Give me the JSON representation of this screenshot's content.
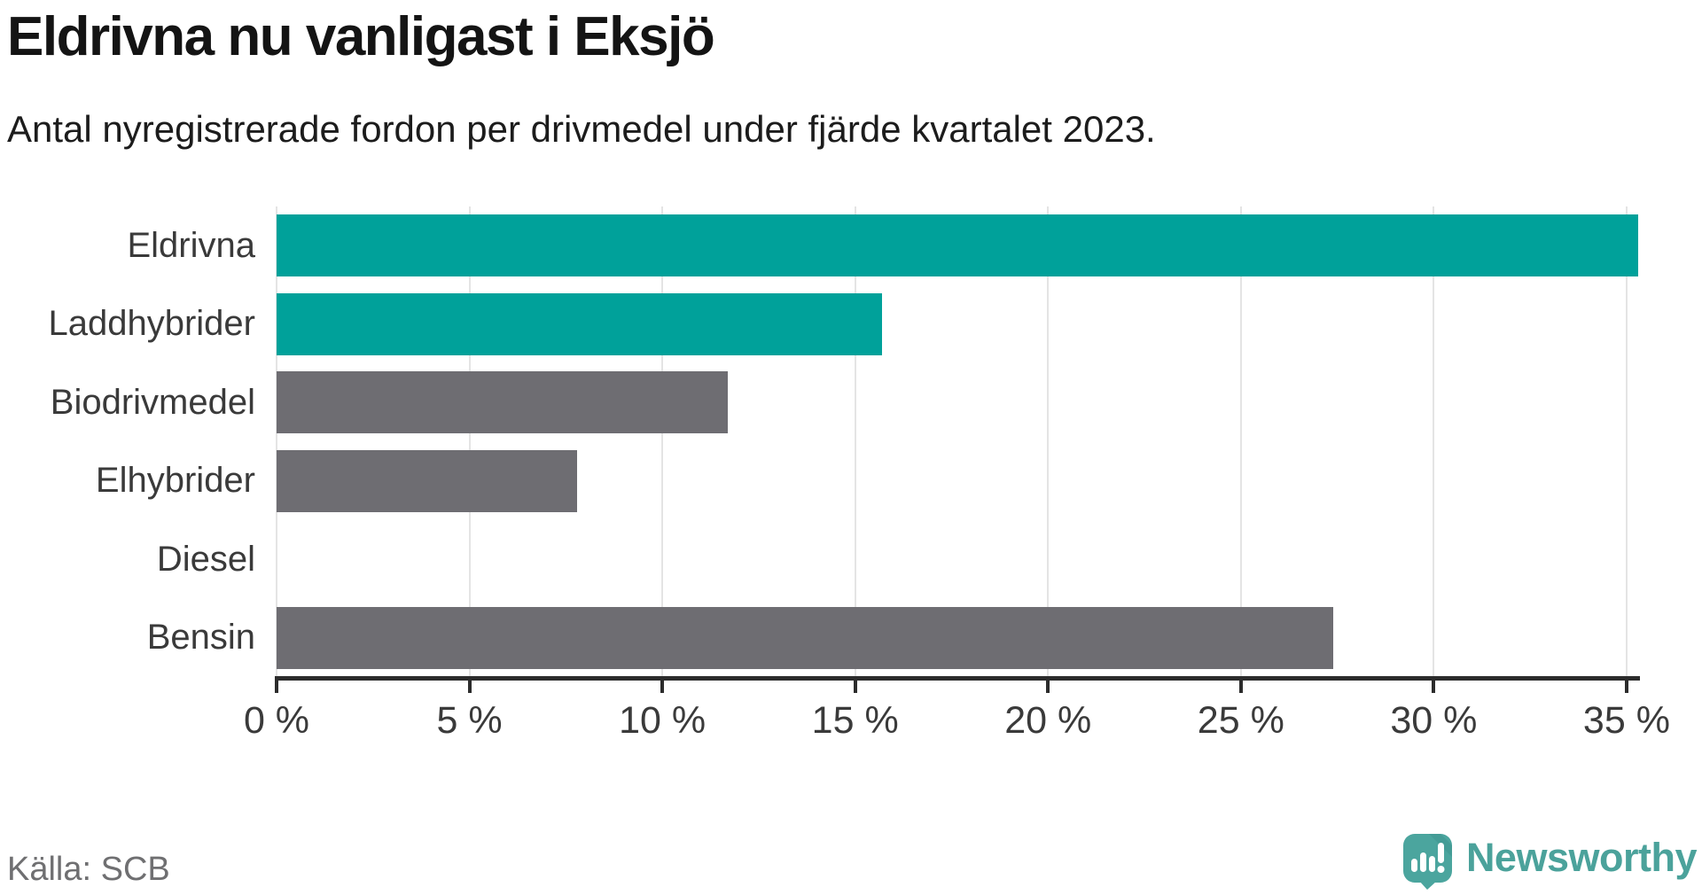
{
  "header": {
    "title": "Eldrivna nu vanligast i Eksjö",
    "subtitle": "Antal nyregistrerade fordon per drivmedel under fjärde kvartalet 2023."
  },
  "chart_data": {
    "type": "bar",
    "orientation": "horizontal",
    "title": "Eldrivna nu vanligast i Eksjö",
    "subtitle": "Antal nyregistrerade fordon per drivmedel under fjärde kvartalet 2023.",
    "categories": [
      "Eldrivna",
      "Laddhybrider",
      "Biodrivmedel",
      "Elhybrider",
      "Diesel",
      "Bensin"
    ],
    "values": [
      35.3,
      15.7,
      11.7,
      7.8,
      0,
      27.4
    ],
    "unit": "%",
    "xlim": [
      0,
      35.3
    ],
    "x_ticks": [
      0,
      5,
      10,
      15,
      20,
      25,
      30,
      35
    ],
    "x_tick_suffix": " %",
    "grid": true,
    "legend": "none",
    "highlight_color": "#00a19a",
    "default_color": "#6e6d72",
    "bar_colors": [
      "#00a19a",
      "#00a19a",
      "#6e6d72",
      "#6e6d72",
      "#6e6d72",
      "#6e6d72"
    ],
    "gridline_color": "#e4e4e4",
    "axis_color": "#2c2c2c"
  },
  "footer": {
    "source": "Källa: SCB",
    "brand": "Newsworthy",
    "brand_color": "#4ba29b"
  }
}
